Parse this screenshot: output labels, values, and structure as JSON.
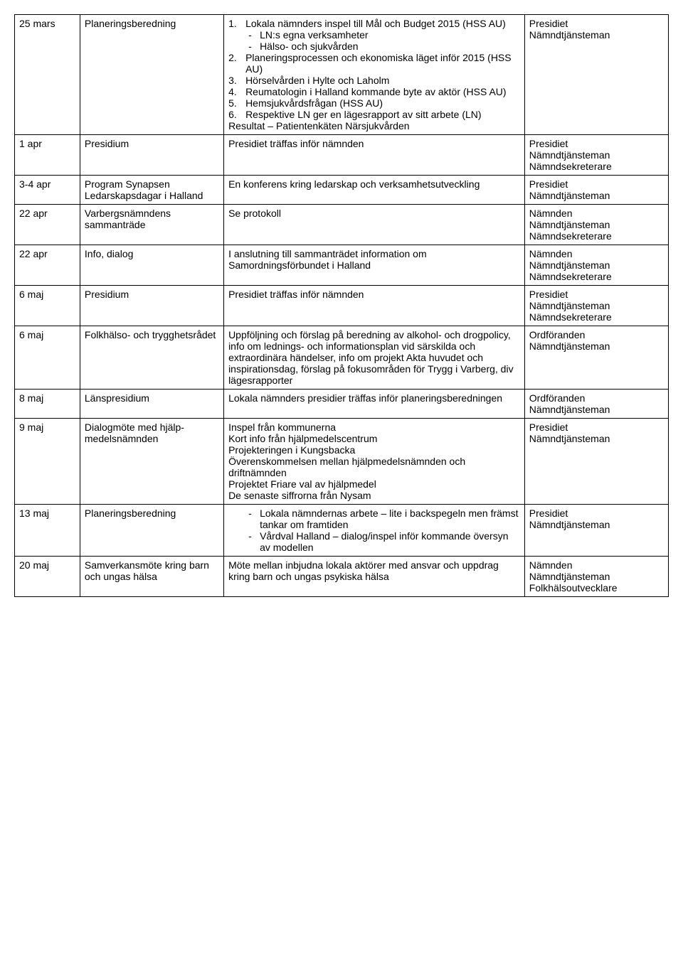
{
  "table": {
    "colors": {
      "border": "#000000",
      "background": "#ffffff",
      "text": "#000000"
    },
    "font_size_pt": 11,
    "rows": [
      {
        "date": "25 mars",
        "activity": "Planeringsberedning",
        "desc_ol": [
          "Lokala nämnders inspel till Mål och Budget 2015 (HSS AU)"
        ],
        "desc_ol_sub": [
          "LN:s egna verksamheter",
          "Hälso- och sjukvården"
        ],
        "desc_ol_cont": [
          "Planeringsprocessen och ekonomiska läget inför 2015 (HSS AU)",
          "Hörselvården i Hylte och Laholm",
          "Reumatologin i Halland kommande byte av aktör (HSS AU)",
          "Hemsjukvårdsfrågan (HSS AU)",
          "Respektive LN ger en lägesrapport av sitt arbete (LN)"
        ],
        "desc_tail": "Resultat – Patientenkäten Närsjukvården",
        "participants": [
          "Presidiet",
          "Nämndtjänsteman"
        ]
      },
      {
        "date": "1 apr",
        "activity": "Presidium",
        "desc": "Presidiet träffas inför nämnden",
        "participants": [
          "Presidiet",
          "Nämndtjänsteman",
          "Nämndsekreterare"
        ]
      },
      {
        "date": "3-4 apr",
        "activity": "Program Synapsen Ledarskapsdagar i Halland",
        "desc": "En konferens kring ledarskap och verksamhetsutveckling",
        "participants": [
          "Presidiet",
          "Nämndtjänsteman"
        ]
      },
      {
        "date": "22 apr",
        "activity": "Varbergsnämndens sammanträde",
        "desc": "Se protokoll",
        "participants": [
          "Nämnden",
          "Nämndtjänsteman",
          "Nämndsekreterare"
        ]
      },
      {
        "date": "22 apr",
        "activity": "Info, dialog",
        "desc": "I anslutning till sammanträdet information om Samordningsförbundet i Halland",
        "participants": [
          "Nämnden",
          "Nämndtjänsteman",
          "Nämndsekreterare"
        ]
      },
      {
        "date": "6 maj",
        "activity": "Presidium",
        "desc": "Presidiet träffas inför nämnden",
        "participants": [
          "Presidiet",
          "Nämndtjänsteman",
          "Nämndsekreterare"
        ]
      },
      {
        "date": "6 maj",
        "activity": "Folkhälso- och trygghetsrådet",
        "desc": "Uppföljning och förslag på beredning av alkohol- och drogpolicy, info om lednings- och informationsplan vid särskilda och extraordinära händelser, info om projekt Akta huvudet och inspirationsdag, förslag på fokusområden för Trygg i Varberg, div lägesrapporter",
        "participants": [
          "Ordföranden",
          "Nämndtjänsteman"
        ]
      },
      {
        "date": "8 maj",
        "activity": "Länspresidium",
        "desc": "Lokala nämnders presidier träffas inför planeringsberedningen",
        "participants": [
          "Ordföranden",
          "Nämndtjänsteman"
        ]
      },
      {
        "date": "9 maj",
        "activity": "Dialogmöte med hjälp­medelsnämnden",
        "desc_lines": [
          "Inspel från kommunerna",
          "Kort info från hjälpmedelscentrum",
          "Projekteringen i Kungsbacka",
          "Överenskommelsen mellan hjälpmedelsnämnden och driftnämnden",
          "Projektet Friare val av hjälpmedel",
          "De senaste siffrorna från Nysam"
        ],
        "participants": [
          "Presidiet",
          "Nämndtjänsteman"
        ]
      },
      {
        "date": "13 maj",
        "activity": "Planeringsberedning",
        "desc_bullets": [
          "Lokala nämndernas arbete – lite i backspegeln men främst tankar om framtiden",
          "Vårdval Halland – dialog/inspel inför kommande översyn av modellen"
        ],
        "participants": [
          "Presidiet",
          "Nämndtjänsteman"
        ]
      },
      {
        "date": "20 maj",
        "activity": "Samverkansmöte kring barn och ungas hälsa",
        "desc": "Möte mellan inbjudna lokala aktörer med ansvar och uppdrag kring barn och ungas psykiska hälsa",
        "participants": [
          "Nämnden",
          "Nämndtjänsteman",
          "Folkhälsoutvecklare"
        ]
      }
    ]
  }
}
